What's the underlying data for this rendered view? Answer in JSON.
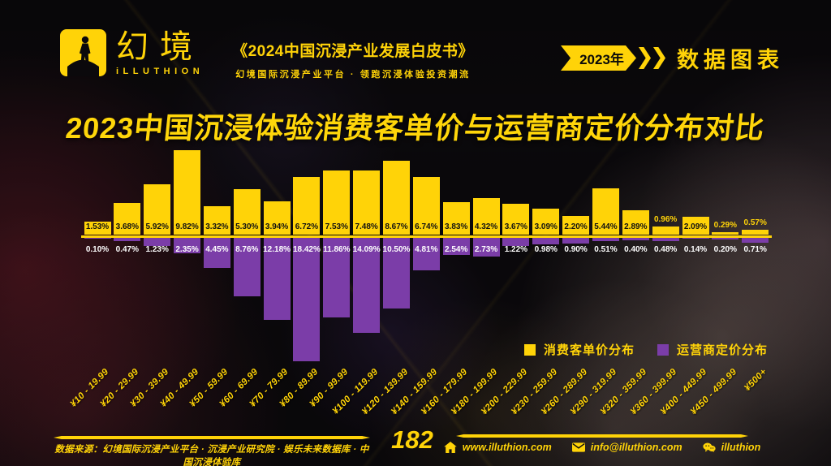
{
  "header": {
    "logo": {
      "brand_cn": "幻境",
      "brand_en": "iLLUTHION"
    },
    "book_title": "《2024中国沉浸产业发展白皮书》",
    "book_subtitle": "幻境国际沉浸产业平台 · 领跑沉浸体验投资潮流",
    "year_badge": "2023年",
    "section_label": "数据图表"
  },
  "title": "2023中国沉浸体验消费客单价与运营商定价分布对比",
  "chart_data": {
    "type": "bar",
    "variant": "diverging-vertical",
    "title": "2023中国沉浸体验消费客单价与运营商定价分布对比",
    "value_suffix": "%",
    "grid": false,
    "legend_position": "middle-right",
    "categories": [
      "¥10 - 19.99",
      "¥20 - 29.99",
      "¥30 - 39.99",
      "¥40 - 49.99",
      "¥50 - 59.99",
      "¥60 - 69.99",
      "¥70 - 79.99",
      "¥80 - 89.99",
      "¥90 - 99.99",
      "¥100 - 119.99",
      "¥120 - 139.99",
      "¥140 - 159.99",
      "¥160 - 179.99",
      "¥180 - 199.99",
      "¥200 - 229.99",
      "¥230 - 259.99",
      "¥260 - 289.99",
      "¥290 - 319.99",
      "¥320 - 359.99",
      "¥360 - 399.99",
      "¥400 - 449.99",
      "¥450 - 499.99",
      "¥500+"
    ],
    "series": [
      {
        "name": "消费客单价分布",
        "color": "#ffd308",
        "direction": "up",
        "values": [
          1.53,
          3.68,
          5.92,
          9.82,
          3.32,
          5.3,
          3.94,
          6.72,
          7.53,
          7.48,
          8.67,
          6.74,
          3.83,
          4.32,
          3.67,
          3.09,
          2.2,
          5.44,
          2.89,
          0.96,
          2.09,
          0.29,
          0.57
        ]
      },
      {
        "name": "运营商定价分布",
        "color": "#7b3da8",
        "direction": "down",
        "values": [
          0.1,
          0.47,
          1.23,
          2.35,
          4.45,
          8.76,
          12.18,
          18.42,
          11.86,
          14.09,
          10.5,
          4.81,
          2.54,
          2.73,
          1.22,
          0.98,
          0.9,
          0.51,
          0.4,
          0.48,
          0.14,
          0.2,
          0.71
        ]
      }
    ]
  },
  "footer": {
    "source": "数据来源：幻境国际沉浸产业平台 · 沉浸产业研究院 · 娱乐未来数据库 · 中国沉浸体验库",
    "page_number": "182",
    "website": "www.illuthion.com",
    "email": "info@illuthion.com",
    "wechat": "illuthion"
  },
  "colors": {
    "accent_yellow": "#ffd308",
    "accent_purple": "#7b3da8",
    "background": "#0b090c",
    "label_on_bar": "#111111",
    "label_on_purple": "#ffffff"
  }
}
